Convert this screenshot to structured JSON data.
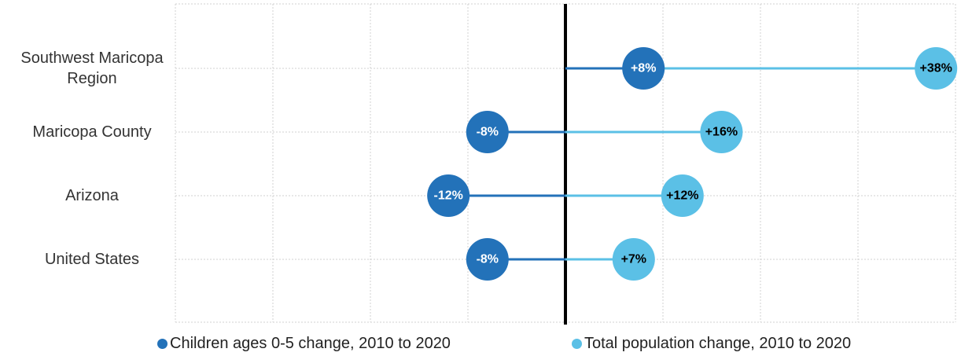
{
  "chart_data": {
    "type": "dot",
    "categories": [
      "Southwest Maricopa Region",
      "Maricopa County",
      "Arizona",
      "United States"
    ],
    "series": [
      {
        "name": "Total population change, 2010 to 2020",
        "color": "#5bc0e6",
        "values": [
          38,
          16,
          12,
          7
        ],
        "value_labels": [
          "+38%",
          "+16%",
          "+12%",
          "+7%"
        ],
        "label_color": "#000000"
      },
      {
        "name": "Children ages 0-5 change, 2010 to 2020",
        "color": "#2372b9",
        "values": [
          8,
          -8,
          -12,
          -8
        ],
        "value_labels": [
          "+8%",
          "-8%",
          "-12%",
          "-8%"
        ],
        "label_color": "#ffffff"
      }
    ],
    "xlim": [
      -40,
      40
    ],
    "xticks": [
      -40,
      -30,
      -20,
      -10,
      0,
      10,
      20,
      30,
      40
    ],
    "grid": true
  }
}
